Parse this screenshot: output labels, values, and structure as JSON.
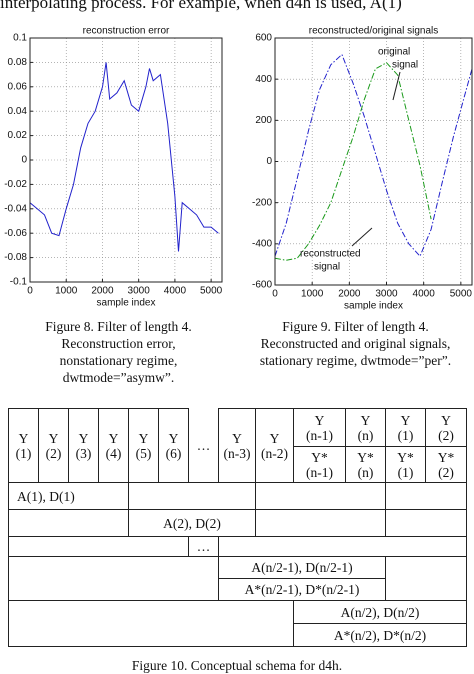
{
  "header": {
    "text": "interpolating process. For example, when d4h is used, A(1)"
  },
  "chart_data": [
    {
      "type": "line",
      "title": "reconstruction error",
      "x_label": "sample index",
      "x": [
        0,
        200,
        400,
        600,
        800,
        1000,
        1200,
        1400,
        1600,
        1800,
        2000,
        2100,
        2200,
        2400,
        2600,
        2800,
        3000,
        3200,
        3300,
        3400,
        3600,
        3800,
        4000,
        4100,
        4200,
        4400,
        4600,
        4800,
        5000,
        5200
      ],
      "series": [
        {
          "color": "#2222cc",
          "values": [
            -0.035,
            -0.04,
            -0.045,
            -0.06,
            -0.062,
            -0.04,
            -0.02,
            0.01,
            0.03,
            0.04,
            0.06,
            0.08,
            0.05,
            0.055,
            0.065,
            0.045,
            0.04,
            0.06,
            0.075,
            0.065,
            0.07,
            0.03,
            -0.03,
            -0.075,
            -0.035,
            -0.04,
            -0.045,
            -0.055,
            -0.055,
            -0.06
          ]
        }
      ],
      "xlim": [
        0,
        5300
      ],
      "xticks": [
        0,
        1000,
        2000,
        3000,
        4000,
        5000
      ],
      "ylim": [
        -0.1,
        0.1
      ],
      "yticks": [
        -0.1,
        -0.08,
        -0.06,
        -0.04,
        -0.02,
        0,
        0.02,
        0.04,
        0.06,
        0.08,
        0.1
      ],
      "grid": true,
      "linestyle": "solid"
    },
    {
      "type": "line",
      "title": "reconstructed/original signals",
      "x_label": "sample index",
      "x": [
        0,
        300,
        600,
        900,
        1200,
        1500,
        1800,
        2100,
        2400,
        2700,
        3000,
        3300,
        3600,
        3900,
        4200,
        4500,
        4800,
        5100,
        5300
      ],
      "series": [
        {
          "color": "#2222cc",
          "values": [
            -460,
            -300,
            -80,
            150,
            350,
            470,
            520,
            380,
            220,
            40,
            -140,
            -300,
            -400,
            -460,
            -330,
            -100,
            120,
            320,
            450
          ]
        },
        {
          "color": "#1a9a1a",
          "values": [
            -470,
            -480,
            -470,
            -400,
            -310,
            -200,
            -40,
            120,
            300,
            450,
            480,
            420,
            200,
            -20,
            -280,
            null,
            null,
            null,
            null
          ]
        }
      ],
      "xlim": [
        0,
        5300
      ],
      "xticks": [
        0,
        1000,
        2000,
        3000,
        4000,
        5000
      ],
      "ylim": [
        -600,
        600
      ],
      "yticks": [
        -600,
        -400,
        -200,
        0,
        200,
        400,
        600
      ],
      "grid": true,
      "linestyle": "dashdot",
      "annotations": [
        {
          "lines": [
            "original",
            "signal"
          ]
        },
        {
          "lines": [
            "reconstructed",
            "signal"
          ]
        }
      ]
    }
  ],
  "figures": [
    {
      "caption": [
        "Figure 8. Filter of length 4.",
        "Reconstruction error,",
        "nonstationary regime,",
        "dwtmode=”asymw”."
      ]
    },
    {
      "caption": [
        "Figure 9. Filter of length 4.",
        "Reconstructed and original signals,",
        "stationary regime, dwtmode=”per”."
      ]
    }
  ],
  "table": {
    "y_cells": [
      {
        "top": "Y",
        "bottom": "(1)"
      },
      {
        "top": "Y",
        "bottom": "(2)"
      },
      {
        "top": "Y",
        "bottom": "(3)"
      },
      {
        "top": "Y",
        "bottom": "(4)"
      },
      {
        "top": "Y",
        "bottom": "(5)"
      },
      {
        "top": "Y",
        "bottom": "(6)"
      },
      {
        "top": "Y",
        "bottom": "(n-3)"
      },
      {
        "top": "Y",
        "bottom": "(n-2)"
      },
      {
        "top": "Y",
        "bottom": "(n-1)"
      },
      {
        "top": "Y",
        "bottom": "(n)"
      },
      {
        "top": "Y",
        "bottom": "(1)"
      },
      {
        "top": "Y",
        "bottom": "(2)"
      }
    ],
    "header_dots": "…",
    "star_cells": [
      {
        "top": "Y*",
        "bottom": "(n-1)"
      },
      {
        "top": "Y*",
        "bottom": "(n)"
      },
      {
        "top": "Y*",
        "bottom": "(1)"
      },
      {
        "top": "Y*",
        "bottom": "(2)"
      }
    ],
    "rows": [
      "A(1), D(1)",
      "A(2), D(2)",
      "…",
      "A(n/2-1), D(n/2-1)",
      "A*(n/2-1), D*(n/2-1)",
      "A(n/2), D(n/2)",
      "A*(n/2), D*(n/2)"
    ],
    "caption": "Figure 10. Conceptual schema for d4h."
  }
}
